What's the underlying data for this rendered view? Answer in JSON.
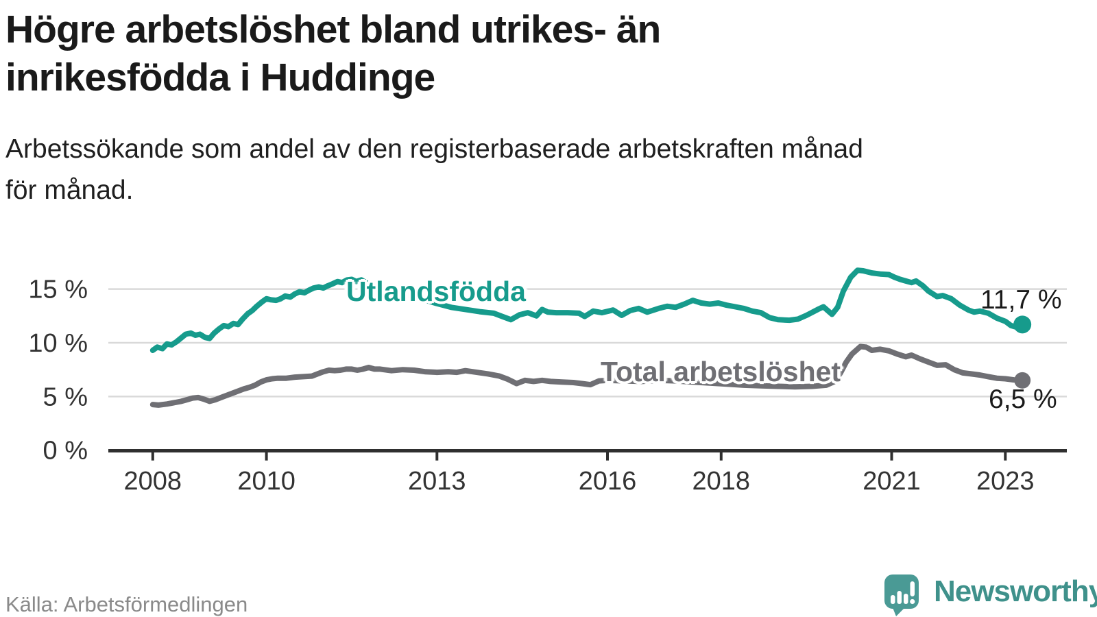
{
  "header": {
    "title_line1": "Högre arbetslöshet bland utrikes- än",
    "title_line2": "inrikesfödda i Huddinge",
    "subtitle_line1": "Arbetssökande som andel av den registerbaserade arbetskraften månad",
    "subtitle_line2": "för månad."
  },
  "footer": {
    "source": "Källa: Arbetsförmedlingen",
    "brand": "Newsworthy"
  },
  "chart_data": {
    "type": "line",
    "title": "Högre arbetslöshet bland utrikes- än inrikesfödda i Huddinge",
    "subtitle": "Arbetssökande som andel av den registerbaserade arbetskraften månad för månad.",
    "xlabel": "",
    "ylabel": "",
    "x_range": [
      2007.2,
      2024.05
    ],
    "ylim": [
      0,
      17.5
    ],
    "grid": "horizontal",
    "legend_position": "inline-labels",
    "y_ticks": [
      {
        "label": "0 %",
        "value": 0
      },
      {
        "label": "5 %",
        "value": 5
      },
      {
        "label": "10 %",
        "value": 10
      },
      {
        "label": "15 %",
        "value": 15
      }
    ],
    "x_ticks": [
      {
        "label": "2008",
        "value": 2008
      },
      {
        "label": "2010",
        "value": 2010
      },
      {
        "label": "2013",
        "value": 2013
      },
      {
        "label": "2016",
        "value": 2016
      },
      {
        "label": "2018",
        "value": 2018
      },
      {
        "label": "2021",
        "value": 2021
      },
      {
        "label": "2023",
        "value": 2023
      }
    ],
    "series": [
      {
        "name": "Utlandsfödda",
        "color": "#169b8c",
        "end_label": "11,7 %",
        "end_value": 11.7,
        "dot_radius": 13,
        "points": [
          [
            2008.0,
            9.3
          ],
          [
            2008.08,
            9.6
          ],
          [
            2008.17,
            9.45
          ],
          [
            2008.25,
            9.9
          ],
          [
            2008.33,
            9.8
          ],
          [
            2008.42,
            10.1
          ],
          [
            2008.5,
            10.45
          ],
          [
            2008.58,
            10.8
          ],
          [
            2008.67,
            10.9
          ],
          [
            2008.75,
            10.7
          ],
          [
            2008.83,
            10.8
          ],
          [
            2008.92,
            10.5
          ],
          [
            2009.0,
            10.4
          ],
          [
            2009.08,
            10.9
          ],
          [
            2009.17,
            11.3
          ],
          [
            2009.25,
            11.6
          ],
          [
            2009.33,
            11.5
          ],
          [
            2009.42,
            11.8
          ],
          [
            2009.5,
            11.7
          ],
          [
            2009.58,
            12.2
          ],
          [
            2009.67,
            12.7
          ],
          [
            2009.75,
            13.0
          ],
          [
            2009.83,
            13.4
          ],
          [
            2009.92,
            13.8
          ],
          [
            2010.0,
            14.1
          ],
          [
            2010.08,
            14.0
          ],
          [
            2010.17,
            13.95
          ],
          [
            2010.25,
            14.1
          ],
          [
            2010.33,
            14.35
          ],
          [
            2010.42,
            14.25
          ],
          [
            2010.5,
            14.55
          ],
          [
            2010.58,
            14.75
          ],
          [
            2010.67,
            14.65
          ],
          [
            2010.75,
            14.9
          ],
          [
            2010.83,
            15.1
          ],
          [
            2010.92,
            15.2
          ],
          [
            2011.0,
            15.1
          ],
          [
            2011.08,
            15.3
          ],
          [
            2011.17,
            15.5
          ],
          [
            2011.25,
            15.7
          ],
          [
            2011.33,
            15.6
          ],
          [
            2011.42,
            15.85
          ],
          [
            2011.5,
            15.9
          ],
          [
            2011.58,
            15.7
          ],
          [
            2011.67,
            15.85
          ],
          [
            2011.75,
            15.6
          ],
          [
            2011.83,
            15.4
          ],
          [
            2011.92,
            15.15
          ],
          [
            2012.0,
            15.0
          ],
          [
            2012.1,
            15.05
          ],
          [
            2012.3,
            14.75
          ],
          [
            2012.5,
            14.4
          ],
          [
            2012.75,
            14.05
          ],
          [
            2013.0,
            13.65
          ],
          [
            2013.25,
            13.3
          ],
          [
            2013.5,
            13.1
          ],
          [
            2013.75,
            12.9
          ],
          [
            2014.0,
            12.75
          ],
          [
            2014.15,
            12.45
          ],
          [
            2014.3,
            12.15
          ],
          [
            2014.45,
            12.6
          ],
          [
            2014.6,
            12.8
          ],
          [
            2014.75,
            12.5
          ],
          [
            2014.85,
            13.1
          ],
          [
            2014.95,
            12.85
          ],
          [
            2015.1,
            12.8
          ],
          [
            2015.3,
            12.8
          ],
          [
            2015.5,
            12.75
          ],
          [
            2015.6,
            12.45
          ],
          [
            2015.75,
            12.95
          ],
          [
            2015.9,
            12.8
          ],
          [
            2016.1,
            13.05
          ],
          [
            2016.25,
            12.55
          ],
          [
            2016.4,
            13.0
          ],
          [
            2016.55,
            13.2
          ],
          [
            2016.7,
            12.85
          ],
          [
            2016.9,
            13.2
          ],
          [
            2017.05,
            13.4
          ],
          [
            2017.2,
            13.3
          ],
          [
            2017.35,
            13.6
          ],
          [
            2017.5,
            13.95
          ],
          [
            2017.65,
            13.7
          ],
          [
            2017.8,
            13.6
          ],
          [
            2017.95,
            13.7
          ],
          [
            2018.1,
            13.5
          ],
          [
            2018.25,
            13.35
          ],
          [
            2018.4,
            13.2
          ],
          [
            2018.55,
            12.95
          ],
          [
            2018.7,
            12.8
          ],
          [
            2018.85,
            12.35
          ],
          [
            2019.0,
            12.15
          ],
          [
            2019.2,
            12.1
          ],
          [
            2019.35,
            12.2
          ],
          [
            2019.5,
            12.55
          ],
          [
            2019.7,
            13.1
          ],
          [
            2019.8,
            13.35
          ],
          [
            2019.95,
            12.65
          ],
          [
            2020.05,
            13.3
          ],
          [
            2020.15,
            14.8
          ],
          [
            2020.28,
            16.1
          ],
          [
            2020.4,
            16.75
          ],
          [
            2020.5,
            16.7
          ],
          [
            2020.65,
            16.5
          ],
          [
            2020.8,
            16.4
          ],
          [
            2020.95,
            16.35
          ],
          [
            2021.05,
            16.1
          ],
          [
            2021.15,
            15.9
          ],
          [
            2021.25,
            15.75
          ],
          [
            2021.35,
            15.6
          ],
          [
            2021.43,
            15.75
          ],
          [
            2021.55,
            15.3
          ],
          [
            2021.65,
            14.8
          ],
          [
            2021.8,
            14.3
          ],
          [
            2021.9,
            14.4
          ],
          [
            2022.05,
            14.1
          ],
          [
            2022.2,
            13.5
          ],
          [
            2022.35,
            13.05
          ],
          [
            2022.45,
            12.85
          ],
          [
            2022.55,
            12.95
          ],
          [
            2022.7,
            12.75
          ],
          [
            2022.85,
            12.3
          ],
          [
            2023.0,
            12.0
          ],
          [
            2023.1,
            11.6
          ],
          [
            2023.2,
            11.45
          ],
          [
            2023.3,
            11.7
          ]
        ]
      },
      {
        "name": "Total arbetslöshet",
        "color": "#6f6f74",
        "end_label": "6,5 %",
        "end_value": 6.5,
        "dot_radius": 12,
        "points": [
          [
            2008.0,
            4.25
          ],
          [
            2008.1,
            4.2
          ],
          [
            2008.25,
            4.3
          ],
          [
            2008.4,
            4.45
          ],
          [
            2008.5,
            4.55
          ],
          [
            2008.6,
            4.7
          ],
          [
            2008.7,
            4.85
          ],
          [
            2008.8,
            4.9
          ],
          [
            2008.9,
            4.75
          ],
          [
            2009.0,
            4.55
          ],
          [
            2009.1,
            4.7
          ],
          [
            2009.2,
            4.9
          ],
          [
            2009.3,
            5.1
          ],
          [
            2009.4,
            5.3
          ],
          [
            2009.5,
            5.5
          ],
          [
            2009.6,
            5.7
          ],
          [
            2009.7,
            5.85
          ],
          [
            2009.8,
            6.05
          ],
          [
            2009.9,
            6.35
          ],
          [
            2010.0,
            6.55
          ],
          [
            2010.1,
            6.65
          ],
          [
            2010.2,
            6.7
          ],
          [
            2010.35,
            6.7
          ],
          [
            2010.5,
            6.8
          ],
          [
            2010.65,
            6.85
          ],
          [
            2010.8,
            6.9
          ],
          [
            2010.9,
            7.1
          ],
          [
            2011.0,
            7.3
          ],
          [
            2011.1,
            7.45
          ],
          [
            2011.2,
            7.4
          ],
          [
            2011.3,
            7.45
          ],
          [
            2011.4,
            7.55
          ],
          [
            2011.5,
            7.55
          ],
          [
            2011.6,
            7.45
          ],
          [
            2011.7,
            7.55
          ],
          [
            2011.8,
            7.7
          ],
          [
            2011.9,
            7.55
          ],
          [
            2012.0,
            7.55
          ],
          [
            2012.2,
            7.4
          ],
          [
            2012.4,
            7.5
          ],
          [
            2012.6,
            7.45
          ],
          [
            2012.8,
            7.3
          ],
          [
            2013.0,
            7.25
          ],
          [
            2013.2,
            7.3
          ],
          [
            2013.35,
            7.25
          ],
          [
            2013.5,
            7.4
          ],
          [
            2013.7,
            7.25
          ],
          [
            2013.9,
            7.1
          ],
          [
            2014.1,
            6.9
          ],
          [
            2014.25,
            6.6
          ],
          [
            2014.4,
            6.2
          ],
          [
            2014.55,
            6.5
          ],
          [
            2014.7,
            6.4
          ],
          [
            2014.85,
            6.5
          ],
          [
            2015.0,
            6.4
          ],
          [
            2015.2,
            6.35
          ],
          [
            2015.4,
            6.3
          ],
          [
            2015.55,
            6.2
          ],
          [
            2015.7,
            6.1
          ],
          [
            2015.85,
            6.45
          ],
          [
            2016.0,
            6.5
          ],
          [
            2016.3,
            6.45
          ],
          [
            2016.6,
            6.4
          ],
          [
            2016.9,
            6.5
          ],
          [
            2017.2,
            6.45
          ],
          [
            2017.5,
            6.35
          ],
          [
            2017.8,
            6.25
          ],
          [
            2018.1,
            6.15
          ],
          [
            2018.4,
            6.05
          ],
          [
            2018.7,
            6.0
          ],
          [
            2019.0,
            5.95
          ],
          [
            2019.3,
            5.9
          ],
          [
            2019.6,
            5.95
          ],
          [
            2019.85,
            6.05
          ],
          [
            2020.0,
            6.4
          ],
          [
            2020.1,
            7.2
          ],
          [
            2020.2,
            8.2
          ],
          [
            2020.3,
            8.95
          ],
          [
            2020.45,
            9.65
          ],
          [
            2020.55,
            9.6
          ],
          [
            2020.65,
            9.3
          ],
          [
            2020.8,
            9.4
          ],
          [
            2020.95,
            9.25
          ],
          [
            2021.1,
            8.95
          ],
          [
            2021.25,
            8.7
          ],
          [
            2021.35,
            8.85
          ],
          [
            2021.5,
            8.5
          ],
          [
            2021.65,
            8.2
          ],
          [
            2021.8,
            7.9
          ],
          [
            2021.95,
            7.95
          ],
          [
            2022.1,
            7.5
          ],
          [
            2022.25,
            7.2
          ],
          [
            2022.4,
            7.1
          ],
          [
            2022.55,
            7.0
          ],
          [
            2022.7,
            6.85
          ],
          [
            2022.85,
            6.7
          ],
          [
            2023.0,
            6.65
          ],
          [
            2023.15,
            6.55
          ],
          [
            2023.3,
            6.5
          ]
        ]
      }
    ]
  }
}
